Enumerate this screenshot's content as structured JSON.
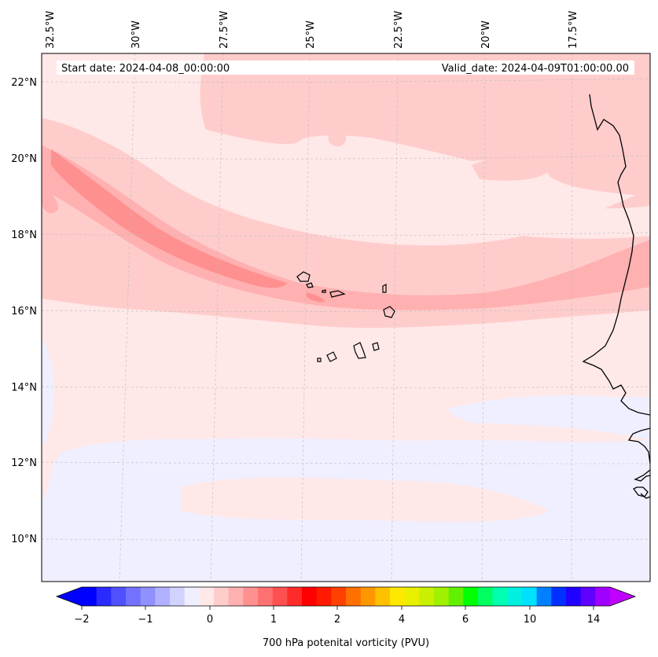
{
  "header": {
    "start_date": "Start date: 2024-04-08_00:00:00",
    "valid_date": "Valid_date: 2024-04-09T01:00:00.00"
  },
  "axes": {
    "lon_labels": [
      "32.5°W",
      "30°W",
      "27.5°W",
      "25°W",
      "22.5°W",
      "20°W",
      "17.5°W"
    ],
    "lat_labels": [
      "22°N",
      "20°N",
      "18°N",
      "16°N",
      "14°N",
      "12°N",
      "10°N"
    ]
  },
  "colorbar": {
    "title": "700 hPa potenital vorticity (PVU)",
    "tick_labels": [
      "−2",
      "−1",
      "0",
      "1",
      "2",
      "4",
      "6",
      "10",
      "14"
    ],
    "colors": [
      "#0000ff",
      "#2b2bff",
      "#5050ff",
      "#7272ff",
      "#9090ff",
      "#b0b0ff",
      "#d2d2ff",
      "#efefff",
      "#ffe8e8",
      "#ffcccc",
      "#ffb0b0",
      "#ff9090",
      "#ff7070",
      "#ff5050",
      "#ff2b2b",
      "#ff0000",
      "#ff1a00",
      "#ff4000",
      "#ff7000",
      "#ff9800",
      "#ffc000",
      "#ffe800",
      "#e8f000",
      "#c8f000",
      "#a0f000",
      "#60f000",
      "#00ff00",
      "#00ff60",
      "#00ffb0",
      "#00f0e0",
      "#00e0ff",
      "#0080ff",
      "#0030ff",
      "#2000ff",
      "#6000ff",
      "#a000ff"
    ],
    "under_color": "#0000ff",
    "over_color": "#c000ff"
  },
  "fill_colors": {
    "background": "#ffe8e8",
    "light_blue": "#efefff",
    "pink_light": "#ffcccc",
    "pink_mid": "#ffb0b0",
    "pink_dark": "#ff9090",
    "coastline": "#000000"
  }
}
